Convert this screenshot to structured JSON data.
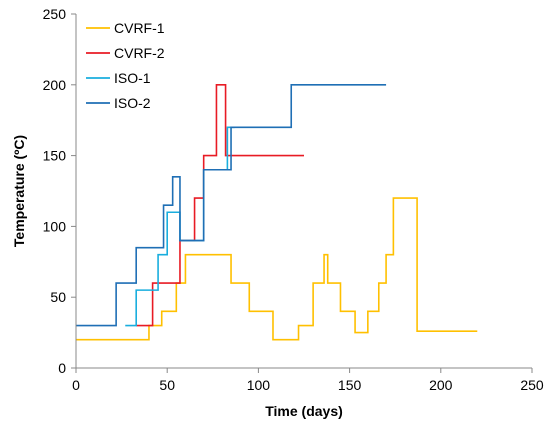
{
  "chart_data": {
    "type": "line",
    "title": "",
    "xlabel": "Time (days)",
    "ylabel": "Temperature (ºC)",
    "xlim": [
      0,
      250
    ],
    "ylim": [
      0,
      250
    ],
    "xticks": [
      0,
      50,
      100,
      150,
      200,
      250
    ],
    "yticks": [
      0,
      50,
      100,
      150,
      200,
      250
    ],
    "grid": false,
    "legend_position": "top-left",
    "step": true,
    "series": [
      {
        "name": "CVRF-1",
        "color": "#FFC000",
        "x": [
          0,
          40,
          40,
          47,
          47,
          55,
          55,
          60,
          60,
          85,
          85,
          95,
          95,
          108,
          108,
          122,
          122,
          130,
          130,
          136,
          136,
          138,
          138,
          145,
          145,
          153,
          153,
          160,
          160,
          166,
          166,
          170,
          170,
          174,
          174,
          187,
          187,
          220
        ],
        "y": [
          20,
          20,
          30,
          30,
          40,
          40,
          60,
          60,
          80,
          80,
          60,
          60,
          40,
          40,
          20,
          20,
          30,
          30,
          60,
          60,
          80,
          80,
          60,
          60,
          40,
          40,
          25,
          25,
          40,
          40,
          60,
          60,
          80,
          80,
          120,
          120,
          26,
          26
        ]
      },
      {
        "name": "CVRF-2",
        "color": "#E81B24",
        "x": [
          33,
          42,
          42,
          57,
          57,
          65,
          65,
          70,
          70,
          77,
          77,
          82,
          82,
          125
        ],
        "y": [
          30,
          30,
          60,
          60,
          90,
          90,
          120,
          120,
          150,
          150,
          200,
          200,
          150,
          150
        ],
        "note": "ends at x=125"
      },
      {
        "name": "ISO-1",
        "color": "#19AEDE",
        "x": [
          27,
          33,
          33,
          45,
          45,
          50,
          50,
          57,
          57,
          70,
          70,
          83,
          83,
          87
        ],
        "y": [
          30,
          30,
          55,
          55,
          80,
          80,
          110,
          110,
          90,
          90,
          140,
          140,
          170,
          170
        ]
      },
      {
        "name": "ISO-2",
        "color": "#1F6FB5",
        "x": [
          0,
          22,
          22,
          33,
          33,
          48,
          48,
          53,
          53,
          57,
          57,
          70,
          70,
          85,
          85,
          118,
          118,
          170
        ],
        "y": [
          30,
          30,
          60,
          60,
          85,
          85,
          115,
          115,
          135,
          135,
          90,
          90,
          140,
          140,
          170,
          170,
          200,
          200
        ]
      }
    ]
  }
}
